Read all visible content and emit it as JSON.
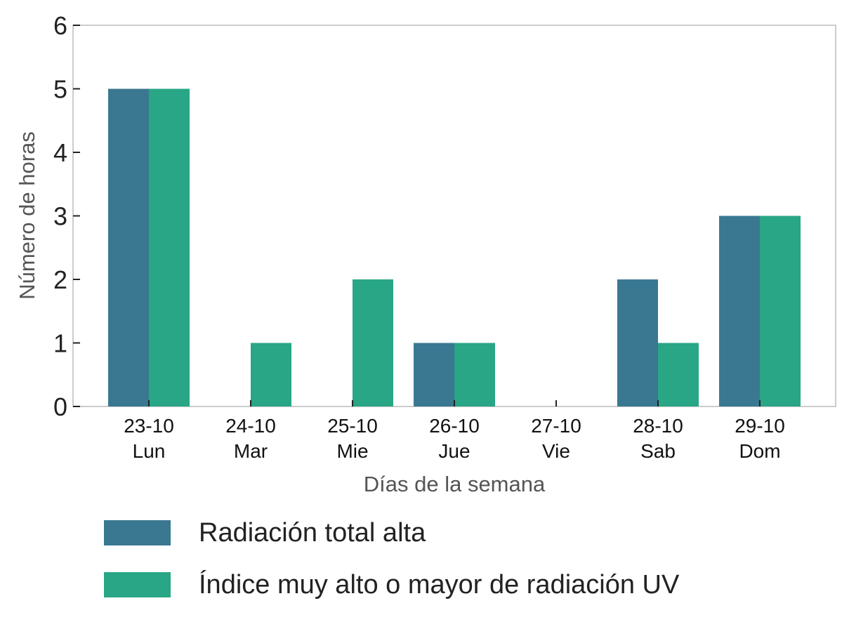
{
  "chart_data": {
    "type": "bar",
    "categories": [
      "23-10",
      "24-10",
      "25-10",
      "26-10",
      "27-10",
      "28-10",
      "29-10"
    ],
    "category_sublabels": [
      "Lun",
      "Mar",
      "Mie",
      "Jue",
      "Vie",
      "Sab",
      "Dom"
    ],
    "series": [
      {
        "name": "Radiación total alta",
        "color": "#3a7891",
        "values": [
          5,
          0,
          0,
          1,
          0,
          2,
          3
        ]
      },
      {
        "name": "Índice muy alto o mayor de radiación UV",
        "color": "#28a685",
        "values": [
          5,
          1,
          2,
          1,
          0,
          1,
          3
        ]
      }
    ],
    "xlabel": "Días de la semana",
    "ylabel": "Número de horas",
    "ylim": [
      0,
      6
    ],
    "yticks": [
      0,
      1,
      2,
      3,
      4,
      5,
      6
    ],
    "grid": false,
    "legend_position": "bottom-left, below chart"
  }
}
